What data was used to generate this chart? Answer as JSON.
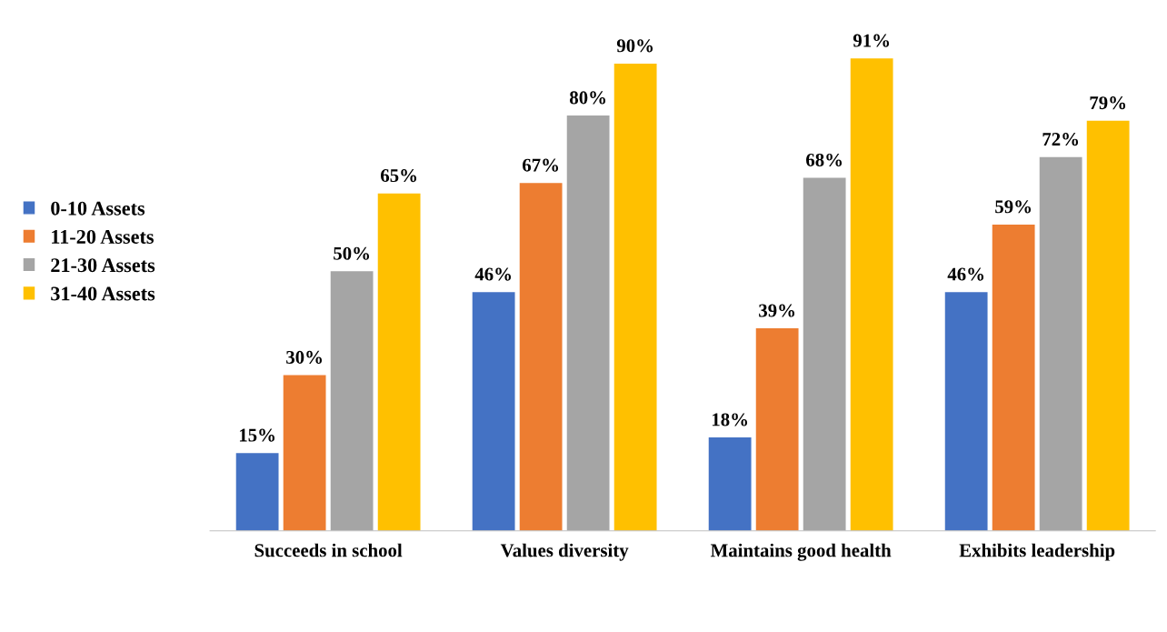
{
  "chart_data": {
    "type": "bar",
    "categories": [
      "Succeeds in school",
      "Values diversity",
      "Maintains good health",
      "Exhibits leadership"
    ],
    "series": [
      {
        "name": "0-10 Assets",
        "color": "#4472c4",
        "values": [
          15,
          46,
          18,
          46
        ],
        "value_labels": [
          "15%",
          "46%",
          "18%",
          "46%"
        ]
      },
      {
        "name": "11-20 Assets",
        "color": "#ed7d31",
        "values": [
          30,
          67,
          39,
          59
        ],
        "value_labels": [
          "30%",
          "67%",
          "39%",
          "59%"
        ]
      },
      {
        "name": "21-30 Assets",
        "color": "#a5a5a5",
        "values": [
          50,
          80,
          68,
          72
        ],
        "value_labels": [
          "50%",
          "80%",
          "68%",
          "72%"
        ]
      },
      {
        "name": "31-40 Assets",
        "color": "#ffc000",
        "values": [
          65,
          90,
          91,
          79
        ],
        "value_labels": [
          "65%",
          "90%",
          "91%",
          "79%"
        ]
      }
    ],
    "legend": "left"
  }
}
